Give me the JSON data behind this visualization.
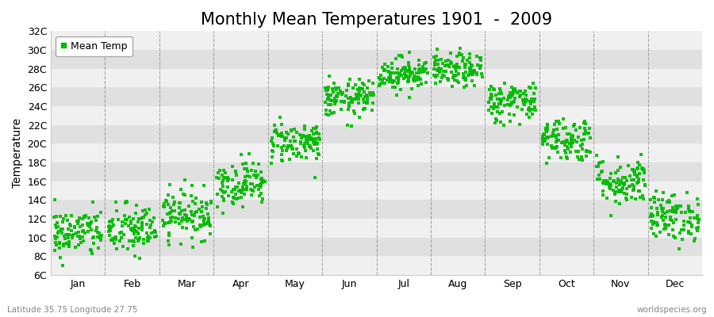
{
  "title": "Monthly Mean Temperatures 1901  -  2009",
  "ylabel": "Temperature",
  "bottom_left": "Latitude 35.75 Longitude 27.75",
  "bottom_right": "worldspecies.org",
  "legend_label": "Mean Temp",
  "dot_color": "#00bb00",
  "background_color": "#ffffff",
  "band_color_light": "#f0f0f0",
  "band_color_dark": "#e0e0e0",
  "ytick_labels": [
    "6C",
    "8C",
    "10C",
    "12C",
    "14C",
    "16C",
    "18C",
    "20C",
    "22C",
    "24C",
    "26C",
    "28C",
    "30C",
    "32C"
  ],
  "ytick_values": [
    6,
    8,
    10,
    12,
    14,
    16,
    18,
    20,
    22,
    24,
    26,
    28,
    30,
    32
  ],
  "ylim": [
    6,
    32
  ],
  "month_names": [
    "Jan",
    "Feb",
    "Mar",
    "Apr",
    "May",
    "Jun",
    "Jul",
    "Aug",
    "Sep",
    "Oct",
    "Nov",
    "Dec"
  ],
  "monthly_means": [
    10.5,
    10.8,
    12.5,
    15.8,
    20.2,
    24.8,
    27.5,
    27.8,
    24.5,
    20.5,
    16.0,
    12.2
  ],
  "monthly_stds": [
    1.3,
    1.4,
    1.3,
    1.2,
    1.1,
    1.0,
    0.9,
    0.9,
    1.1,
    1.2,
    1.3,
    1.3
  ],
  "n_years": 109,
  "title_fontsize": 15,
  "axis_fontsize": 10,
  "tick_fontsize": 9,
  "legend_fontsize": 9,
  "dot_size": 5,
  "dot_alpha": 0.9,
  "grid_color": "#aaaaaa",
  "dashed_color": "#888888"
}
